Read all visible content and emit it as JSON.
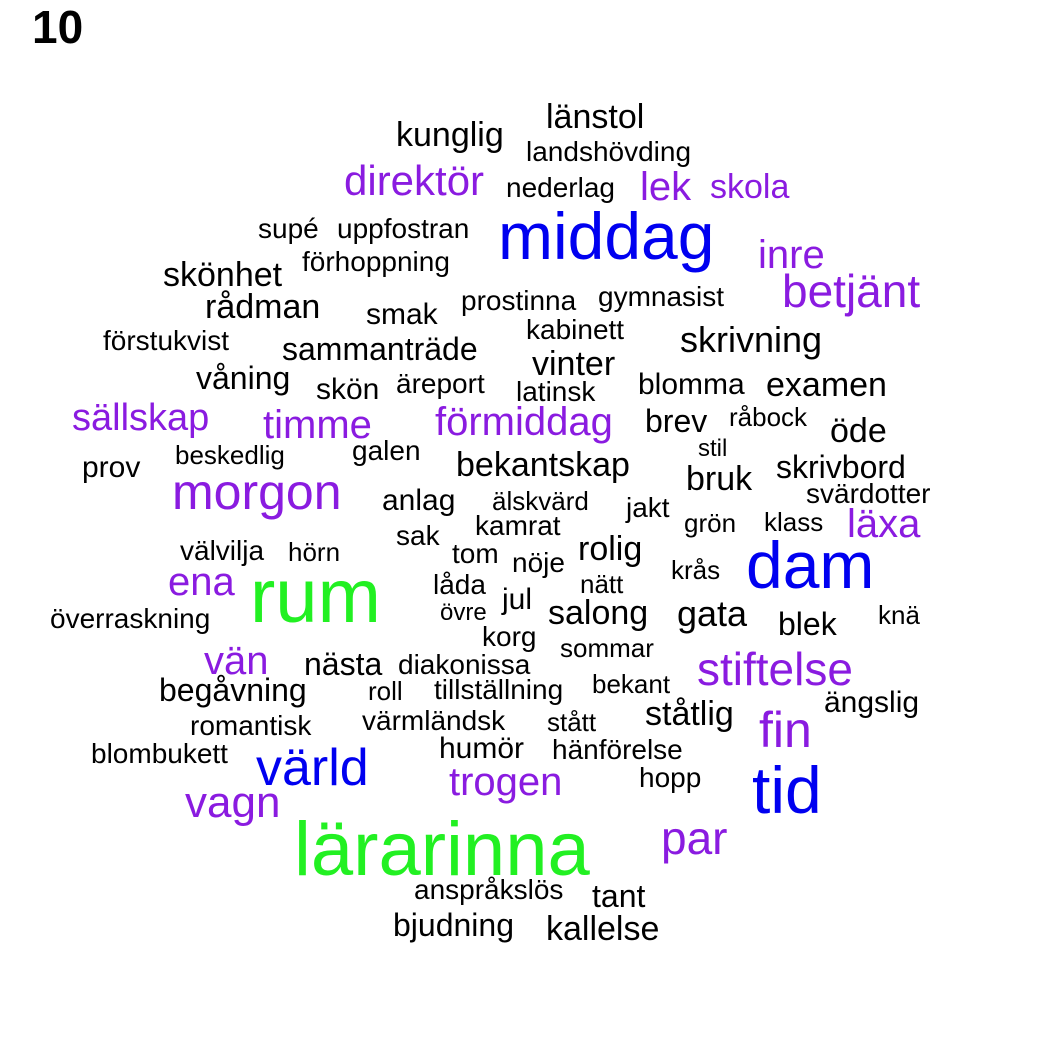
{
  "panel_label": "10",
  "colors": {
    "black": "#000000",
    "purple": "#8a1be0",
    "blue": "#0000f0",
    "green": "#22f022"
  },
  "words": [
    {
      "text": "länstol",
      "color": "black"
    },
    {
      "text": "kunglig",
      "color": "black"
    },
    {
      "text": "landshövding",
      "color": "black"
    },
    {
      "text": "direktör",
      "color": "purple"
    },
    {
      "text": "nederlag",
      "color": "black"
    },
    {
      "text": "lek",
      "color": "purple"
    },
    {
      "text": "skola",
      "color": "purple"
    },
    {
      "text": "supé",
      "color": "black"
    },
    {
      "text": "uppfostran",
      "color": "black"
    },
    {
      "text": "middag",
      "color": "blue"
    },
    {
      "text": "inre",
      "color": "purple"
    },
    {
      "text": "förhoppning",
      "color": "black"
    },
    {
      "text": "skönhet",
      "color": "black"
    },
    {
      "text": "betjänt",
      "color": "purple"
    },
    {
      "text": "rådman",
      "color": "black"
    },
    {
      "text": "prostinna",
      "color": "black"
    },
    {
      "text": "gymnasist",
      "color": "black"
    },
    {
      "text": "smak",
      "color": "black"
    },
    {
      "text": "kabinett",
      "color": "black"
    },
    {
      "text": "förstukvist",
      "color": "black"
    },
    {
      "text": "sammanträde",
      "color": "black"
    },
    {
      "text": "skrivning",
      "color": "black"
    },
    {
      "text": "vinter",
      "color": "black"
    },
    {
      "text": "våning",
      "color": "black"
    },
    {
      "text": "äreport",
      "color": "black"
    },
    {
      "text": "skön",
      "color": "black"
    },
    {
      "text": "latinsk",
      "color": "black"
    },
    {
      "text": "blomma",
      "color": "black"
    },
    {
      "text": "examen",
      "color": "black"
    },
    {
      "text": "sällskap",
      "color": "purple"
    },
    {
      "text": "timme",
      "color": "purple"
    },
    {
      "text": "förmiddag",
      "color": "purple"
    },
    {
      "text": "brev",
      "color": "black"
    },
    {
      "text": "råbock",
      "color": "black"
    },
    {
      "text": "öde",
      "color": "black"
    },
    {
      "text": "beskedlig",
      "color": "black"
    },
    {
      "text": "galen",
      "color": "black"
    },
    {
      "text": "stil",
      "color": "black"
    },
    {
      "text": "prov",
      "color": "black"
    },
    {
      "text": "bekantskap",
      "color": "black"
    },
    {
      "text": "bruk",
      "color": "black"
    },
    {
      "text": "skrivbord",
      "color": "black"
    },
    {
      "text": "morgon",
      "color": "purple"
    },
    {
      "text": "anlag",
      "color": "black"
    },
    {
      "text": "älskvärd",
      "color": "black"
    },
    {
      "text": "svärdotter",
      "color": "black"
    },
    {
      "text": "jakt",
      "color": "black"
    },
    {
      "text": "kamrat",
      "color": "black"
    },
    {
      "text": "grön",
      "color": "black"
    },
    {
      "text": "klass",
      "color": "black"
    },
    {
      "text": "läxa",
      "color": "purple"
    },
    {
      "text": "sak",
      "color": "black"
    },
    {
      "text": "välvilja",
      "color": "black"
    },
    {
      "text": "hörn",
      "color": "black"
    },
    {
      "text": "tom",
      "color": "black"
    },
    {
      "text": "rolig",
      "color": "black"
    },
    {
      "text": "nöje",
      "color": "black"
    },
    {
      "text": "dam",
      "color": "blue"
    },
    {
      "text": "ena",
      "color": "purple"
    },
    {
      "text": "rum",
      "color": "green"
    },
    {
      "text": "krås",
      "color": "black"
    },
    {
      "text": "låda",
      "color": "black"
    },
    {
      "text": "nätt",
      "color": "black"
    },
    {
      "text": "jul",
      "color": "black"
    },
    {
      "text": "övre",
      "color": "black"
    },
    {
      "text": "salong",
      "color": "black"
    },
    {
      "text": "gata",
      "color": "black"
    },
    {
      "text": "överraskning",
      "color": "black"
    },
    {
      "text": "knä",
      "color": "black"
    },
    {
      "text": "blek",
      "color": "black"
    },
    {
      "text": "korg",
      "color": "black"
    },
    {
      "text": "sommar",
      "color": "black"
    },
    {
      "text": "vän",
      "color": "purple"
    },
    {
      "text": "nästa",
      "color": "black"
    },
    {
      "text": "diakonissa",
      "color": "black"
    },
    {
      "text": "stiftelse",
      "color": "purple"
    },
    {
      "text": "bekant",
      "color": "black"
    },
    {
      "text": "begåvning",
      "color": "black"
    },
    {
      "text": "roll",
      "color": "black"
    },
    {
      "text": "tillställning",
      "color": "black"
    },
    {
      "text": "ängslig",
      "color": "black"
    },
    {
      "text": "ståtlig",
      "color": "black"
    },
    {
      "text": "romantisk",
      "color": "black"
    },
    {
      "text": "värmländsk",
      "color": "black"
    },
    {
      "text": "stått",
      "color": "black"
    },
    {
      "text": "fin",
      "color": "purple"
    },
    {
      "text": "humör",
      "color": "black"
    },
    {
      "text": "blombukett",
      "color": "black"
    },
    {
      "text": "hänförelse",
      "color": "black"
    },
    {
      "text": "värld",
      "color": "blue"
    },
    {
      "text": "trogen",
      "color": "purple"
    },
    {
      "text": "hopp",
      "color": "black"
    },
    {
      "text": "tid",
      "color": "blue"
    },
    {
      "text": "vagn",
      "color": "purple"
    },
    {
      "text": "par",
      "color": "purple"
    },
    {
      "text": "lärarinna",
      "color": "green"
    },
    {
      "text": "anspråkslös",
      "color": "black"
    },
    {
      "text": "tant",
      "color": "black"
    },
    {
      "text": "bjudning",
      "color": "black"
    },
    {
      "text": "kallelse",
      "color": "black"
    }
  ]
}
